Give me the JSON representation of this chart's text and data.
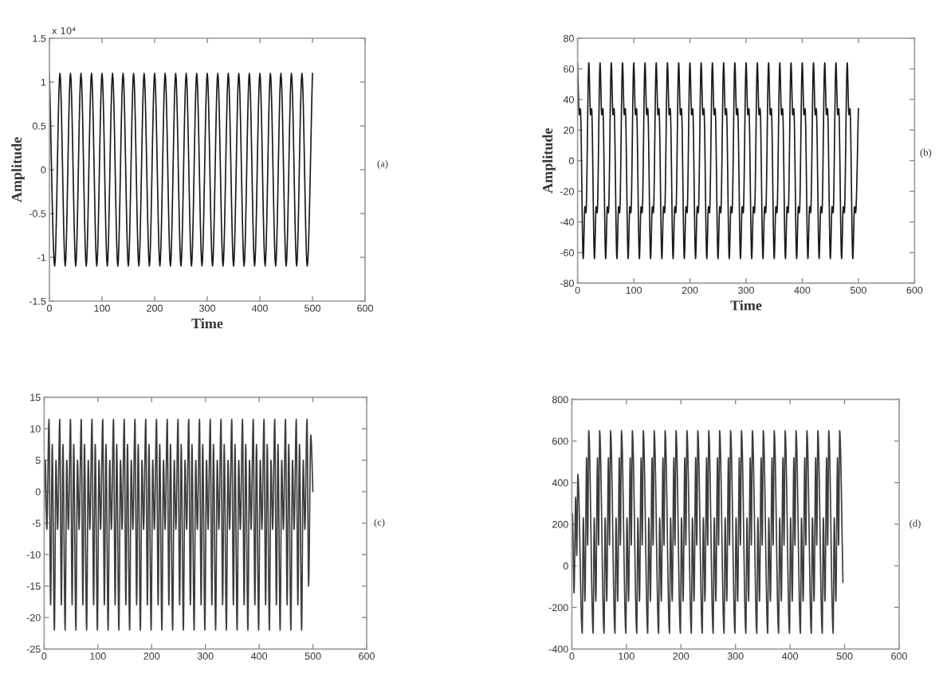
{
  "chart_data": [
    {
      "type": "line",
      "title": "(a)",
      "xlabel": "Time",
      "ylabel": "Amplitude",
      "annotations": [
        "x 10⁴"
      ],
      "xlim": [
        0,
        600
      ],
      "xticks": [
        0,
        100,
        200,
        300,
        400,
        500,
        600
      ],
      "ylim": [
        -1.5,
        1.5
      ],
      "yticks": [
        -1.5,
        -1,
        -0.5,
        0,
        0.5,
        1,
        1.5
      ],
      "series": [
        {
          "color": "#1a1a1a",
          "x": [
            0,
            10,
            20,
            30,
            40,
            50,
            60,
            70,
            80,
            90,
            100,
            110,
            120,
            130,
            140,
            150,
            160,
            170,
            180,
            190,
            200,
            210,
            220,
            230,
            240,
            250,
            260,
            270,
            280,
            290,
            300,
            310,
            320,
            330,
            340,
            350,
            360,
            370,
            380,
            390,
            400,
            410,
            420,
            430,
            440,
            450,
            460,
            470,
            480,
            490,
            500
          ],
          "values": [
            1.1,
            -1.1,
            1.1,
            -1.1,
            1.1,
            -1.1,
            1.1,
            -1.1,
            1.1,
            -1.1,
            1.1,
            -1.1,
            1.1,
            -1.1,
            1.1,
            -1.1,
            1.1,
            -1.1,
            1.1,
            -1.1,
            1.1,
            -1.1,
            1.1,
            -1.1,
            1.1,
            -1.1,
            1.1,
            -1.1,
            1.1,
            -1.1,
            1.1,
            -1.1,
            1.1,
            -1.1,
            1.1,
            -1.1,
            1.1,
            -1.1,
            1.1,
            -1.1,
            1.1,
            -1.1,
            1.1,
            -1.1,
            1.1,
            -1.1,
            1.1,
            -1.1,
            1.1,
            -1.1,
            1.1
          ]
        }
      ]
    },
    {
      "type": "line",
      "title": "(b)",
      "xlabel": "Time",
      "ylabel": "Amplitude",
      "xlim": [
        0,
        600
      ],
      "xticks": [
        0,
        100,
        200,
        300,
        400,
        500,
        600
      ],
      "ylim": [
        -80,
        80
      ],
      "yticks": [
        -80,
        -60,
        -40,
        -20,
        0,
        20,
        40,
        60,
        80
      ],
      "series": [
        {
          "color": "#1a1a1a",
          "x": [
            0,
            3,
            5,
            10,
            13,
            15,
            20,
            23,
            25,
            30,
            33,
            35,
            40,
            43,
            45,
            50,
            53,
            55,
            60,
            63,
            65,
            70,
            73,
            75,
            80,
            83,
            85,
            90,
            93,
            95,
            100,
            103,
            105,
            110,
            113,
            115,
            120,
            123,
            125,
            130,
            133,
            135,
            140,
            143,
            145,
            150,
            153,
            155,
            160,
            163,
            165,
            170,
            173,
            175,
            180,
            183,
            185,
            190,
            193,
            195,
            200,
            203,
            205,
            210,
            213,
            215,
            220,
            223,
            225,
            230,
            233,
            235,
            240,
            243,
            245,
            250,
            253,
            255,
            260,
            263,
            265,
            270,
            273,
            275,
            280,
            283,
            285,
            290,
            293,
            295,
            300,
            303,
            305,
            310,
            313,
            315,
            320,
            323,
            325,
            330,
            333,
            335,
            340,
            343,
            345,
            350,
            353,
            355,
            360,
            363,
            365,
            370,
            373,
            375,
            380,
            383,
            385,
            390,
            393,
            395,
            400,
            403,
            405,
            410,
            413,
            415,
            420,
            423,
            425,
            430,
            433,
            435,
            440,
            443,
            445,
            450,
            453,
            455,
            460,
            463,
            465,
            470,
            473,
            475,
            480,
            483,
            485,
            490,
            493,
            495,
            500
          ],
          "values": [
            64,
            30,
            34,
            -64,
            -30,
            -34,
            64,
            30,
            34,
            -64,
            -30,
            -34,
            64,
            30,
            34,
            -64,
            -30,
            -34,
            64,
            30,
            34,
            -64,
            -30,
            -34,
            64,
            30,
            34,
            -64,
            -30,
            -34,
            64,
            30,
            34,
            -64,
            -30,
            -34,
            64,
            30,
            34,
            -64,
            -30,
            -34,
            64,
            30,
            34,
            -64,
            -30,
            -34,
            64,
            30,
            34,
            -64,
            -30,
            -34,
            64,
            30,
            34,
            -64,
            -30,
            -34,
            64,
            30,
            34,
            -64,
            -30,
            -34,
            64,
            30,
            34,
            -64,
            -30,
            -34,
            64,
            30,
            34,
            -64,
            -30,
            -34,
            64,
            30,
            34,
            -64,
            -30,
            -34,
            64,
            30,
            34,
            -64,
            -30,
            -34,
            64,
            30,
            34,
            -64,
            -30,
            -34,
            64,
            30,
            34,
            -64,
            -30,
            -34,
            64,
            30,
            34,
            -64,
            -30,
            -34,
            64,
            30,
            34,
            -64,
            -30,
            -34,
            64,
            30,
            34,
            -64,
            -30,
            -34,
            64,
            30,
            34,
            -64,
            -30,
            -34,
            64,
            30,
            34,
            -64,
            -30,
            -34,
            64,
            30,
            34,
            -64,
            -30,
            -34,
            64,
            30,
            34,
            -64,
            -30,
            -34,
            64,
            30,
            34,
            -64,
            -30,
            -34,
            34
          ]
        }
      ]
    },
    {
      "type": "line",
      "title": "(c)",
      "xlim": [
        0,
        600
      ],
      "xticks": [
        0,
        100,
        200,
        300,
        400,
        500,
        600
      ],
      "ylim": [
        -25,
        15
      ],
      "yticks": [
        -25,
        -20,
        -15,
        -10,
        -5,
        0,
        5,
        10,
        15
      ],
      "series": [
        {
          "color": "#3c3c3c",
          "x": [
            0,
            2,
            5,
            9,
            12,
            15,
            19,
            22,
            25,
            29,
            32,
            35,
            39,
            42,
            45,
            49,
            52,
            55,
            59,
            62,
            65,
            69,
            72,
            75,
            79,
            82,
            85,
            89,
            92,
            95,
            99,
            102,
            105,
            109,
            112,
            115,
            119,
            122,
            125,
            129,
            132,
            135,
            139,
            142,
            145,
            149,
            152,
            155,
            159,
            162,
            165,
            169,
            172,
            175,
            179,
            182,
            185,
            189,
            192,
            195,
            199,
            202,
            205,
            209,
            212,
            215,
            219,
            222,
            225,
            229,
            232,
            235,
            239,
            242,
            245,
            249,
            252,
            255,
            259,
            262,
            265,
            269,
            272,
            275,
            279,
            282,
            285,
            289,
            292,
            295,
            299,
            302,
            305,
            309,
            312,
            315,
            319,
            322,
            325,
            329,
            332,
            335,
            339,
            342,
            345,
            349,
            352,
            355,
            359,
            362,
            365,
            369,
            372,
            375,
            379,
            382,
            385,
            389,
            392,
            395,
            399,
            402,
            405,
            409,
            412,
            415,
            419,
            422,
            425,
            429,
            432,
            435,
            439,
            442,
            445,
            449,
            452,
            455,
            459,
            462,
            465,
            469,
            472,
            475,
            479,
            482,
            485,
            489,
            492,
            496,
            500
          ],
          "values": [
            -3,
            5,
            -6,
            11.5,
            -18,
            7.5,
            -22,
            5,
            -6,
            11.5,
            -18,
            7.5,
            -22,
            5,
            -6,
            11.5,
            -18,
            7.5,
            -22,
            5,
            -6,
            11.5,
            -18,
            7.5,
            -22,
            5,
            -6,
            11.5,
            -18,
            7.5,
            -22,
            5,
            -6,
            11.5,
            -18,
            7.5,
            -22,
            5,
            -6,
            11.5,
            -18,
            7.5,
            -22,
            5,
            -6,
            11.5,
            -18,
            7.5,
            -22,
            5,
            -6,
            11.5,
            -18,
            7.5,
            -22,
            5,
            -6,
            11.5,
            -18,
            7.5,
            -22,
            5,
            -6,
            11.5,
            -18,
            7.5,
            -22,
            5,
            -6,
            11.5,
            -18,
            7.5,
            -22,
            5,
            -6,
            11.5,
            -18,
            7.5,
            -22,
            5,
            -6,
            11.5,
            -18,
            7.5,
            -22,
            5,
            -6,
            11.5,
            -18,
            7.5,
            -22,
            5,
            -6,
            11.5,
            -18,
            7.5,
            -22,
            5,
            -6,
            11.5,
            -18,
            7.5,
            -22,
            5,
            -6,
            11.5,
            -18,
            7.5,
            -22,
            5,
            -6,
            11.5,
            -18,
            7.5,
            -22,
            5,
            -6,
            11.5,
            -18,
            7.5,
            -22,
            5,
            -6,
            11.5,
            -18,
            7.5,
            -22,
            5,
            -6,
            11.5,
            -18,
            7.5,
            -22,
            5,
            -6,
            11.5,
            -18,
            7.5,
            -22,
            5,
            -6,
            11.5,
            -18,
            7.5,
            -22,
            5,
            -6,
            11.5,
            -15,
            9,
            0
          ]
        }
      ]
    },
    {
      "type": "line",
      "title": "(d)",
      "xlim": [
        0,
        600
      ],
      "xticks": [
        0,
        100,
        200,
        300,
        400,
        500,
        600
      ],
      "ylim": [
        -400,
        800
      ],
      "yticks": [
        -400,
        -200,
        0,
        200,
        400,
        600,
        800
      ],
      "series": [
        {
          "color": "#3c3c3c",
          "x": [
            0,
            1,
            4,
            7,
            9,
            11,
            19,
            21,
            24,
            27,
            29,
            31,
            39,
            41,
            44,
            47,
            49,
            51,
            59,
            61,
            64,
            67,
            69,
            71,
            79,
            81,
            84,
            87,
            89,
            91,
            99,
            101,
            104,
            107,
            109,
            111,
            119,
            121,
            124,
            127,
            129,
            131,
            139,
            141,
            144,
            147,
            149,
            151,
            159,
            161,
            164,
            167,
            169,
            171,
            179,
            181,
            184,
            187,
            189,
            191,
            199,
            201,
            204,
            207,
            209,
            211,
            219,
            221,
            224,
            227,
            229,
            231,
            239,
            241,
            244,
            247,
            249,
            251,
            259,
            261,
            264,
            267,
            269,
            271,
            279,
            281,
            284,
            287,
            289,
            291,
            299,
            301,
            304,
            307,
            309,
            311,
            319,
            321,
            324,
            327,
            329,
            331,
            339,
            341,
            344,
            347,
            349,
            351,
            359,
            361,
            364,
            367,
            369,
            371,
            379,
            381,
            384,
            387,
            389,
            391,
            399,
            401,
            404,
            407,
            409,
            411,
            419,
            421,
            424,
            427,
            429,
            431,
            439,
            441,
            444,
            447,
            449,
            451,
            459,
            461,
            464,
            467,
            469,
            471,
            479,
            481,
            484,
            487,
            489,
            491,
            497
          ],
          "values": [
            100,
            250,
            -130,
            330,
            50,
            440,
            -325,
            230,
            -170,
            520,
            100,
            650,
            -325,
            230,
            -170,
            520,
            100,
            650,
            -325,
            230,
            -170,
            520,
            100,
            650,
            -325,
            230,
            -170,
            520,
            100,
            650,
            -325,
            230,
            -170,
            520,
            100,
            650,
            -325,
            230,
            -170,
            520,
            100,
            650,
            -325,
            230,
            -170,
            520,
            100,
            650,
            -325,
            230,
            -170,
            520,
            100,
            650,
            -325,
            230,
            -170,
            520,
            100,
            650,
            -325,
            230,
            -170,
            520,
            100,
            650,
            -325,
            230,
            -170,
            520,
            100,
            650,
            -325,
            230,
            -170,
            520,
            100,
            650,
            -325,
            230,
            -170,
            520,
            100,
            650,
            -325,
            230,
            -170,
            520,
            100,
            650,
            -325,
            230,
            -170,
            520,
            100,
            650,
            -325,
            230,
            -170,
            520,
            100,
            650,
            -325,
            230,
            -170,
            520,
            100,
            650,
            -325,
            230,
            -170,
            520,
            100,
            650,
            -325,
            230,
            -170,
            520,
            100,
            650,
            -325,
            230,
            -170,
            520,
            100,
            650,
            -325,
            230,
            -170,
            520,
            100,
            650,
            -325,
            230,
            -170,
            520,
            100,
            650,
            -325,
            230,
            -170,
            520,
            100,
            650,
            -325,
            230,
            -170,
            520,
            100,
            650,
            -80
          ]
        }
      ]
    }
  ]
}
